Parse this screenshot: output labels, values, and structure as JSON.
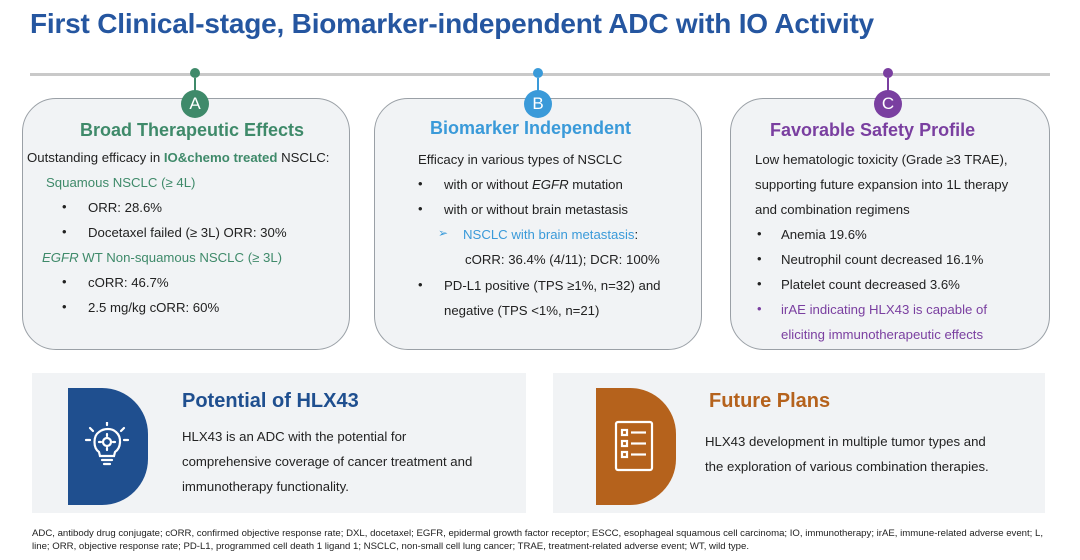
{
  "title": "First Clinical-stage, Biomarker-independent ADC with IO Activity",
  "colors": {
    "title": "#2556a0",
    "green": "#3f8a6a",
    "blue": "#3a9ad9",
    "purple": "#7a3fa0",
    "navy": "#1f4f8f",
    "brown": "#b5621c"
  },
  "card_a": {
    "letter": "A",
    "title": "Broad Therapeutic Effects",
    "intro_pre": "Outstanding efficacy in ",
    "intro_bold": "IO&chemo treated",
    "intro_post": " NSCLC:",
    "sub1": "Squamous NSCLC (≥ 4L)",
    "items1": [
      "ORR: 28.6%",
      "Docetaxel failed (≥ 3L) ORR: 30%"
    ],
    "sub2_italic": "EGFR",
    "sub2_rest": " WT Non-squamous NSCLC (≥ 3L)",
    "items2": [
      "cORR: 46.7%",
      "2.5 mg/kg cORR: 60%"
    ]
  },
  "card_b": {
    "letter": "B",
    "title": "Biomarker Independent",
    "intro": "Efficacy in various types of NSCLC",
    "item1_pre": "with or without ",
    "item1_italic": "EGFR",
    "item1_post": " mutation",
    "item2": "with or without brain metastasis",
    "arrow_label": "NSCLC with brain metastasis",
    "arrow_colon": ":",
    "arrow_value": "cORR: 36.4% (4/11); DCR: 100%",
    "item3_line1": "PD-L1 positive (TPS ≥1%, n=32) and",
    "item3_line2": "negative (TPS <1%, n=21)"
  },
  "card_c": {
    "letter": "C",
    "title": "Favorable Safety Profile",
    "intro1": "Low hematologic toxicity (Grade ≥3 TRAE),",
    "intro2": "supporting future expansion into 1L therapy",
    "intro3": "and combination regimens",
    "items": [
      "Anemia 19.6%",
      "Neutrophil count decreased 16.1%",
      "Platelet count decreased 3.6%"
    ],
    "purple1": "irAE indicating HLX43 is capable of",
    "purple2": "eliciting immunotherapeutic effects"
  },
  "bullet": "•",
  "arrow": "➢",
  "potential": {
    "title": "Potential of HLX43",
    "icon": "lightbulb-gear-icon",
    "lines": [
      "HLX43 is an ADC with the potential for",
      "comprehensive coverage of cancer treatment and",
      "immunotherapy functionality."
    ]
  },
  "future": {
    "title": "Future Plans",
    "icon": "checklist-document-icon",
    "lines": [
      "HLX43 development in multiple tumor types and",
      "the exploration of various combination therapies."
    ]
  },
  "footnote": "ADC, antibody drug conjugate; cORR, confirmed objective response rate; DXL, docetaxel; EGFR, epidermal growth factor receptor; ESCC, esophageal squamous cell carcinoma; IO, immunotherapy; irAE, immune-related adverse event; L, line; ORR, objective response rate; PD-L1, programmed cell death 1 ligand 1; NSCLC, non-small cell lung cancer; TRAE, treatment-related adverse event; WT, wild type."
}
